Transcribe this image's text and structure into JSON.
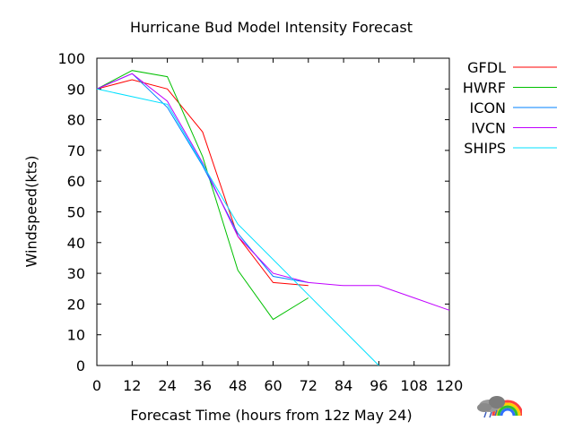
{
  "chart_data": {
    "type": "line",
    "title": "Hurricane Bud Model Intensity Forecast",
    "xlabel": "Forecast Time (hours from 12z May 24)",
    "ylabel": "Windspeed(kts)",
    "xlim": [
      0,
      120
    ],
    "ylim": [
      0,
      100
    ],
    "xticks": [
      0,
      12,
      24,
      36,
      48,
      60,
      72,
      84,
      96,
      108,
      120
    ],
    "yticks": [
      0,
      10,
      20,
      30,
      40,
      50,
      60,
      70,
      80,
      90,
      100
    ],
    "grid": false,
    "legend_position": "right",
    "series": [
      {
        "name": "GFDL",
        "color": "#ff0000",
        "x": [
          0,
          12,
          24,
          36,
          48,
          60,
          72
        ],
        "y": [
          90,
          93,
          90,
          76,
          42,
          27,
          26
        ]
      },
      {
        "name": "HWRF",
        "color": "#00c000",
        "x": [
          0,
          12,
          24,
          36,
          48,
          60,
          72
        ],
        "y": [
          90,
          96,
          94,
          68,
          31,
          15,
          22
        ]
      },
      {
        "name": "ICON",
        "color": "#0080ff",
        "x": [
          0,
          12,
          24,
          36,
          48,
          60,
          72
        ],
        "y": [
          90,
          95,
          84,
          65,
          43,
          29,
          27
        ]
      },
      {
        "name": "IVCN",
        "color": "#c000ff",
        "x": [
          0,
          12,
          24,
          36,
          48,
          60,
          72,
          84,
          96,
          108,
          120
        ],
        "y": [
          90,
          95,
          86,
          66,
          42,
          30,
          27,
          26,
          26,
          22,
          18
        ]
      },
      {
        "name": "SHIPS",
        "color": "#00e0ff",
        "x": [
          0,
          24,
          48,
          96
        ],
        "y": [
          90,
          85,
          46,
          0
        ]
      }
    ]
  }
}
